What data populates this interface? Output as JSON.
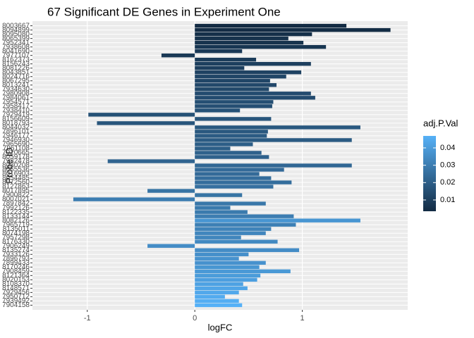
{
  "chart_data": {
    "type": "bar",
    "orientation": "horizontal",
    "title": "67 Significant DE Genes in Experiment One",
    "x_label": "logFC",
    "y_label": "Probe ID",
    "legend_title": "adj.P.Val",
    "categories": [
      "8003667",
      "8094899",
      "8095080",
      "8065399",
      "7952341",
      "7938608",
      "8041690",
      "7977107",
      "8162373",
      "8156243",
      "8081226",
      "8043851",
      "8024716",
      "8067295",
      "8013241",
      "7934630",
      "7980908",
      "7984061",
      "7954571",
      "7958417",
      "7938410",
      "7929419",
      "8156609",
      "8018793",
      "8044032",
      "7896101",
      "7946177",
      "7946930",
      "7965690",
      "7961108",
      "7920665",
      "8059178",
      "7982478",
      "8030208",
      "8065536",
      "8016903",
      "8054485",
      "8072560",
      "8127863",
      "8017895",
      "7900822",
      "8007021",
      "7897842",
      "7992126",
      "8122335",
      "8133144",
      "8082126",
      "7965719",
      "8135011",
      "8074198",
      "7957298",
      "8176330",
      "7906249",
      "8135274",
      "7933126",
      "7896793",
      "7899433",
      "8170246",
      "7908459",
      "8121364",
      "8020153",
      "8108370",
      "8148571",
      "7929456",
      "7950712",
      "7939492",
      "7904158"
    ],
    "values": [
      1.41,
      1.82,
      1.09,
      0.87,
      1.01,
      1.22,
      0.44,
      -0.31,
      0.57,
      1.08,
      0.46,
      0.99,
      0.85,
      0.7,
      0.76,
      0.69,
      1.08,
      1.12,
      0.73,
      0.72,
      0.42,
      -0.99,
      0.71,
      -0.91,
      1.54,
      0.68,
      0.67,
      1.46,
      0.54,
      0.33,
      0.62,
      0.69,
      -0.81,
      1.46,
      0.83,
      0.6,
      0.71,
      0.9,
      0.73,
      -0.44,
      0.44,
      -1.13,
      0.66,
      0.33,
      0.49,
      0.92,
      1.54,
      0.94,
      0.71,
      0.66,
      0.43,
      0.77,
      -0.44,
      0.97,
      0.5,
      0.41,
      0.66,
      0.6,
      0.89,
      0.61,
      0.58,
      0.45,
      0.49,
      0.41,
      0.28,
      0.41,
      0.44
    ],
    "color_values": [
      0.0035,
      0.004,
      0.005,
      0.006,
      0.006,
      0.007,
      0.008,
      0.008,
      0.009,
      0.01,
      0.01,
      0.011,
      0.012,
      0.012,
      0.013,
      0.013,
      0.014,
      0.014,
      0.015,
      0.015,
      0.016,
      0.016,
      0.017,
      0.017,
      0.018,
      0.018,
      0.019,
      0.019,
      0.02,
      0.02,
      0.021,
      0.021,
      0.022,
      0.023,
      0.024,
      0.024,
      0.025,
      0.025,
      0.026,
      0.027,
      0.027,
      0.03,
      0.028,
      0.029,
      0.029,
      0.03,
      0.038,
      0.031,
      0.032,
      0.033,
      0.033,
      0.034,
      0.035,
      0.035,
      0.036,
      0.037,
      0.037,
      0.038,
      0.039,
      0.04,
      0.041,
      0.042,
      0.043,
      0.044,
      0.045,
      0.046,
      0.0469
    ],
    "color_low": "#132B43",
    "color_high": "#56B1F7",
    "legend_ticks": [
      0.01,
      0.02,
      0.03,
      0.04
    ],
    "xlim": [
      -1.51,
      1.98
    ],
    "xticks": [
      -1,
      0,
      1
    ],
    "grid": true
  }
}
